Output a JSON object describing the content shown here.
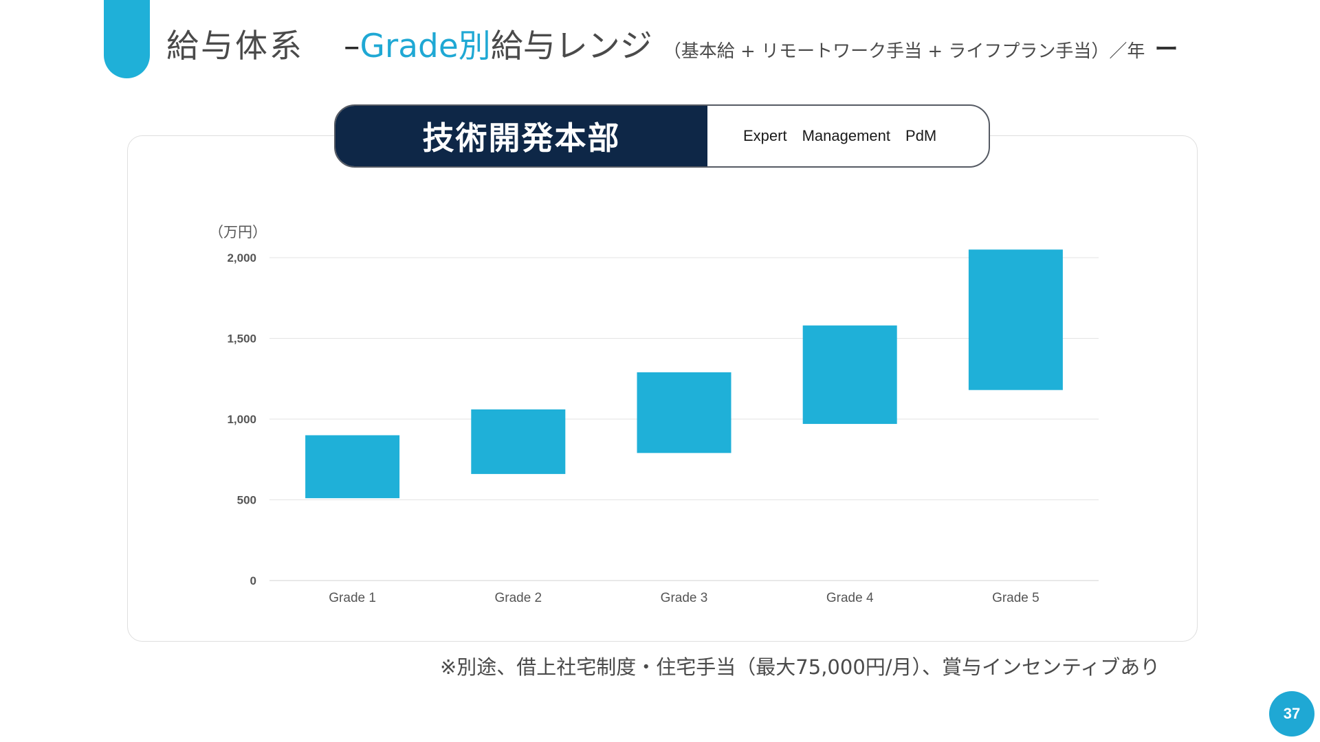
{
  "slide": {
    "title_main": "給与体系",
    "title_dash": "–",
    "title_accent": "Grade別",
    "title_rest": "給与レンジ",
    "title_sub": "（基本給 + リモートワーク手当 + ライフプラン手当）／年",
    "title_end": "ー",
    "accent_color": "#1fa8d4",
    "dark_color": "#0e2747"
  },
  "department": {
    "name": "技術開発本部",
    "roles": [
      "Expert",
      "Management",
      "PdM"
    ]
  },
  "chart_data": {
    "type": "bar",
    "subtype": "floating-range",
    "unit_label": "（万円）",
    "categories": [
      "Grade 1",
      "Grade 2",
      "Grade 3",
      "Grade 4",
      "Grade 5"
    ],
    "series": [
      {
        "low": [
          510,
          660,
          790,
          970,
          1180
        ],
        "high": [
          900,
          1060,
          1290,
          1580,
          2050
        ],
        "color": "#1fb0d8"
      }
    ],
    "ylim": [
      0,
      2000
    ],
    "yticks": [
      0,
      500,
      1000,
      1500,
      2000
    ],
    "ytick_labels": [
      "0",
      "500",
      "1,000",
      "1,500",
      "2,000"
    ],
    "grid": true,
    "legend": "none"
  },
  "footer": {
    "note": "※別途、借上社宅制度・住宅手当（最大75,000円/月）、賞与インセンティブあり",
    "page_number": "37"
  }
}
